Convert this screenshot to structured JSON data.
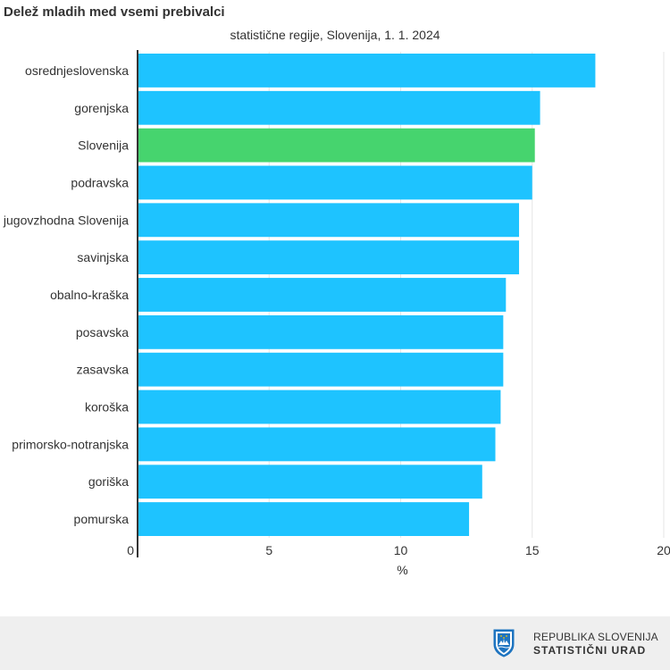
{
  "chart_data": {
    "type": "bar",
    "orientation": "horizontal",
    "title": "Delež mladih med vsemi prebivalci",
    "subtitle": "statistične regije, Slovenija, 1. 1. 2024",
    "xlabel": "%",
    "ylabel": "",
    "xlim": [
      0,
      20
    ],
    "x_ticks": [
      "0",
      "5",
      "10",
      "15",
      "20"
    ],
    "grid": true,
    "categories": [
      "osrednjeslovenska",
      "gorenjska",
      "Slovenija",
      "podravska",
      "jugovzhodna Slovenija",
      "savinjska",
      "obalno-kraška",
      "posavska",
      "zasavska",
      "koroška",
      "primorsko-notranjska",
      "goriška",
      "pomurska"
    ],
    "values": [
      17.4,
      15.3,
      15.1,
      15.0,
      14.5,
      14.5,
      14.0,
      13.9,
      13.9,
      13.8,
      13.6,
      13.1,
      12.6
    ],
    "colors": {
      "default": "#1ec3ff",
      "highlight": "#46d46e",
      "highlight_category": "Slovenija",
      "grid": "#e6e6e6",
      "axis": "#333333"
    }
  },
  "footer": {
    "line1": "REPUBLIKA SLOVENIJA",
    "line2": "STATISTIČNI URAD",
    "emblem_icon": "slovenia-coat-of-arms-icon"
  }
}
